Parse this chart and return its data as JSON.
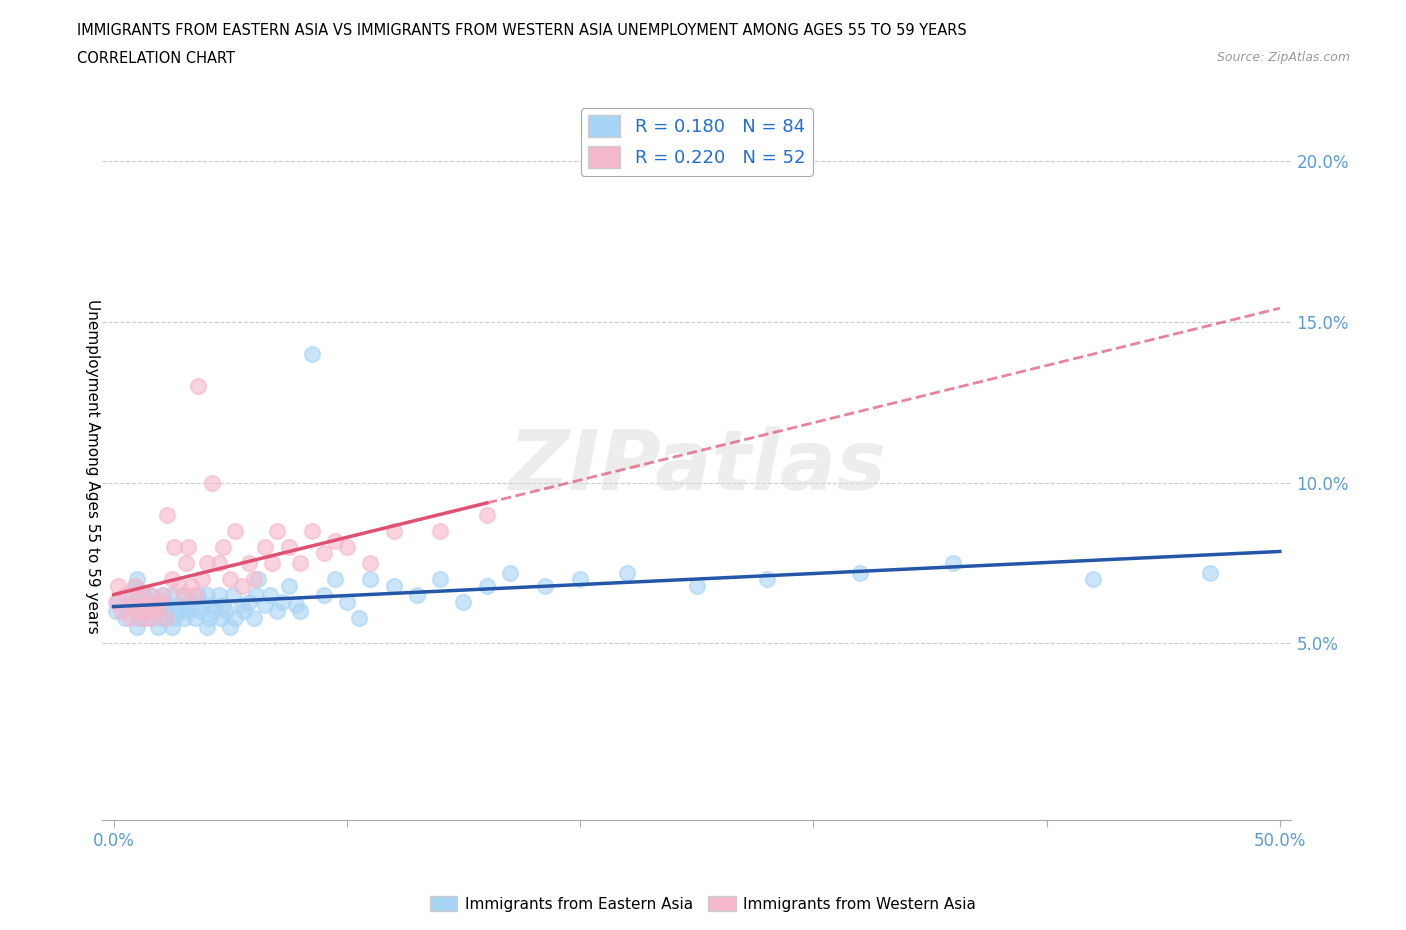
{
  "title_line1": "IMMIGRANTS FROM EASTERN ASIA VS IMMIGRANTS FROM WESTERN ASIA UNEMPLOYMENT AMONG AGES 55 TO 59 YEARS",
  "title_line2": "CORRELATION CHART",
  "source_text": "Source: ZipAtlas.com",
  "ylabel": "Unemployment Among Ages 55 to 59 years",
  "xlim": [
    -0.005,
    0.505
  ],
  "ylim": [
    -0.005,
    0.215
  ],
  "xticks": [
    0.0,
    0.1,
    0.2,
    0.3,
    0.4,
    0.5
  ],
  "xticklabels": [
    "0.0%",
    "",
    "",
    "",
    "",
    "50.0%"
  ],
  "yticks": [
    0.05,
    0.1,
    0.15,
    0.2
  ],
  "yticklabels": [
    "5.0%",
    "10.0%",
    "15.0%",
    "20.0%"
  ],
  "color_eastern": "#A8D4F5",
  "color_western": "#F5B8CB",
  "trendline_color_eastern": "#2457A8",
  "trendline_color_western": "#E05070",
  "watermark_text": "ZIPatlas",
  "eastern_x": [
    0.001,
    0.002,
    0.005,
    0.007,
    0.008,
    0.009,
    0.01,
    0.01,
    0.011,
    0.012,
    0.012,
    0.013,
    0.015,
    0.015,
    0.016,
    0.017,
    0.018,
    0.019,
    0.02,
    0.02,
    0.021,
    0.022,
    0.022,
    0.023,
    0.025,
    0.025,
    0.026,
    0.027,
    0.028,
    0.03,
    0.03,
    0.031,
    0.032,
    0.033,
    0.035,
    0.036,
    0.037,
    0.038,
    0.04,
    0.04,
    0.041,
    0.042,
    0.043,
    0.045,
    0.046,
    0.047,
    0.048,
    0.05,
    0.051,
    0.052,
    0.055,
    0.056,
    0.058,
    0.06,
    0.061,
    0.062,
    0.065,
    0.067,
    0.07,
    0.072,
    0.075,
    0.078,
    0.08,
    0.085,
    0.09,
    0.095,
    0.1,
    0.105,
    0.11,
    0.12,
    0.13,
    0.14,
    0.15,
    0.16,
    0.17,
    0.185,
    0.2,
    0.22,
    0.25,
    0.28,
    0.32,
    0.36,
    0.42,
    0.47
  ],
  "eastern_y": [
    0.06,
    0.063,
    0.058,
    0.062,
    0.065,
    0.068,
    0.055,
    0.07,
    0.058,
    0.062,
    0.066,
    0.06,
    0.063,
    0.058,
    0.065,
    0.06,
    0.063,
    0.055,
    0.058,
    0.062,
    0.065,
    0.058,
    0.062,
    0.06,
    0.055,
    0.065,
    0.058,
    0.062,
    0.06,
    0.065,
    0.058,
    0.062,
    0.06,
    0.063,
    0.058,
    0.065,
    0.06,
    0.062,
    0.055,
    0.065,
    0.058,
    0.062,
    0.06,
    0.065,
    0.058,
    0.062,
    0.06,
    0.055,
    0.065,
    0.058,
    0.062,
    0.06,
    0.063,
    0.058,
    0.065,
    0.07,
    0.062,
    0.065,
    0.06,
    0.063,
    0.068,
    0.062,
    0.06,
    0.14,
    0.065,
    0.07,
    0.063,
    0.058,
    0.07,
    0.068,
    0.065,
    0.07,
    0.063,
    0.068,
    0.072,
    0.068,
    0.07,
    0.072,
    0.068,
    0.07,
    0.072,
    0.075,
    0.07,
    0.072
  ],
  "western_x": [
    0.001,
    0.002,
    0.003,
    0.005,
    0.007,
    0.008,
    0.009,
    0.01,
    0.011,
    0.012,
    0.013,
    0.014,
    0.015,
    0.016,
    0.017,
    0.018,
    0.02,
    0.021,
    0.022,
    0.023,
    0.025,
    0.026,
    0.028,
    0.03,
    0.031,
    0.032,
    0.033,
    0.035,
    0.036,
    0.038,
    0.04,
    0.042,
    0.045,
    0.047,
    0.05,
    0.052,
    0.055,
    0.058,
    0.06,
    0.065,
    0.068,
    0.07,
    0.075,
    0.08,
    0.085,
    0.09,
    0.095,
    0.1,
    0.11,
    0.12,
    0.14,
    0.16
  ],
  "western_y": [
    0.063,
    0.068,
    0.06,
    0.065,
    0.058,
    0.062,
    0.068,
    0.06,
    0.065,
    0.058,
    0.062,
    0.06,
    0.065,
    0.058,
    0.062,
    0.06,
    0.063,
    0.065,
    0.058,
    0.09,
    0.07,
    0.08,
    0.068,
    0.065,
    0.075,
    0.08,
    0.068,
    0.065,
    0.13,
    0.07,
    0.075,
    0.1,
    0.075,
    0.08,
    0.07,
    0.085,
    0.068,
    0.075,
    0.07,
    0.08,
    0.075,
    0.085,
    0.08,
    0.075,
    0.085,
    0.078,
    0.082,
    0.08,
    0.075,
    0.085,
    0.085,
    0.09
  ]
}
